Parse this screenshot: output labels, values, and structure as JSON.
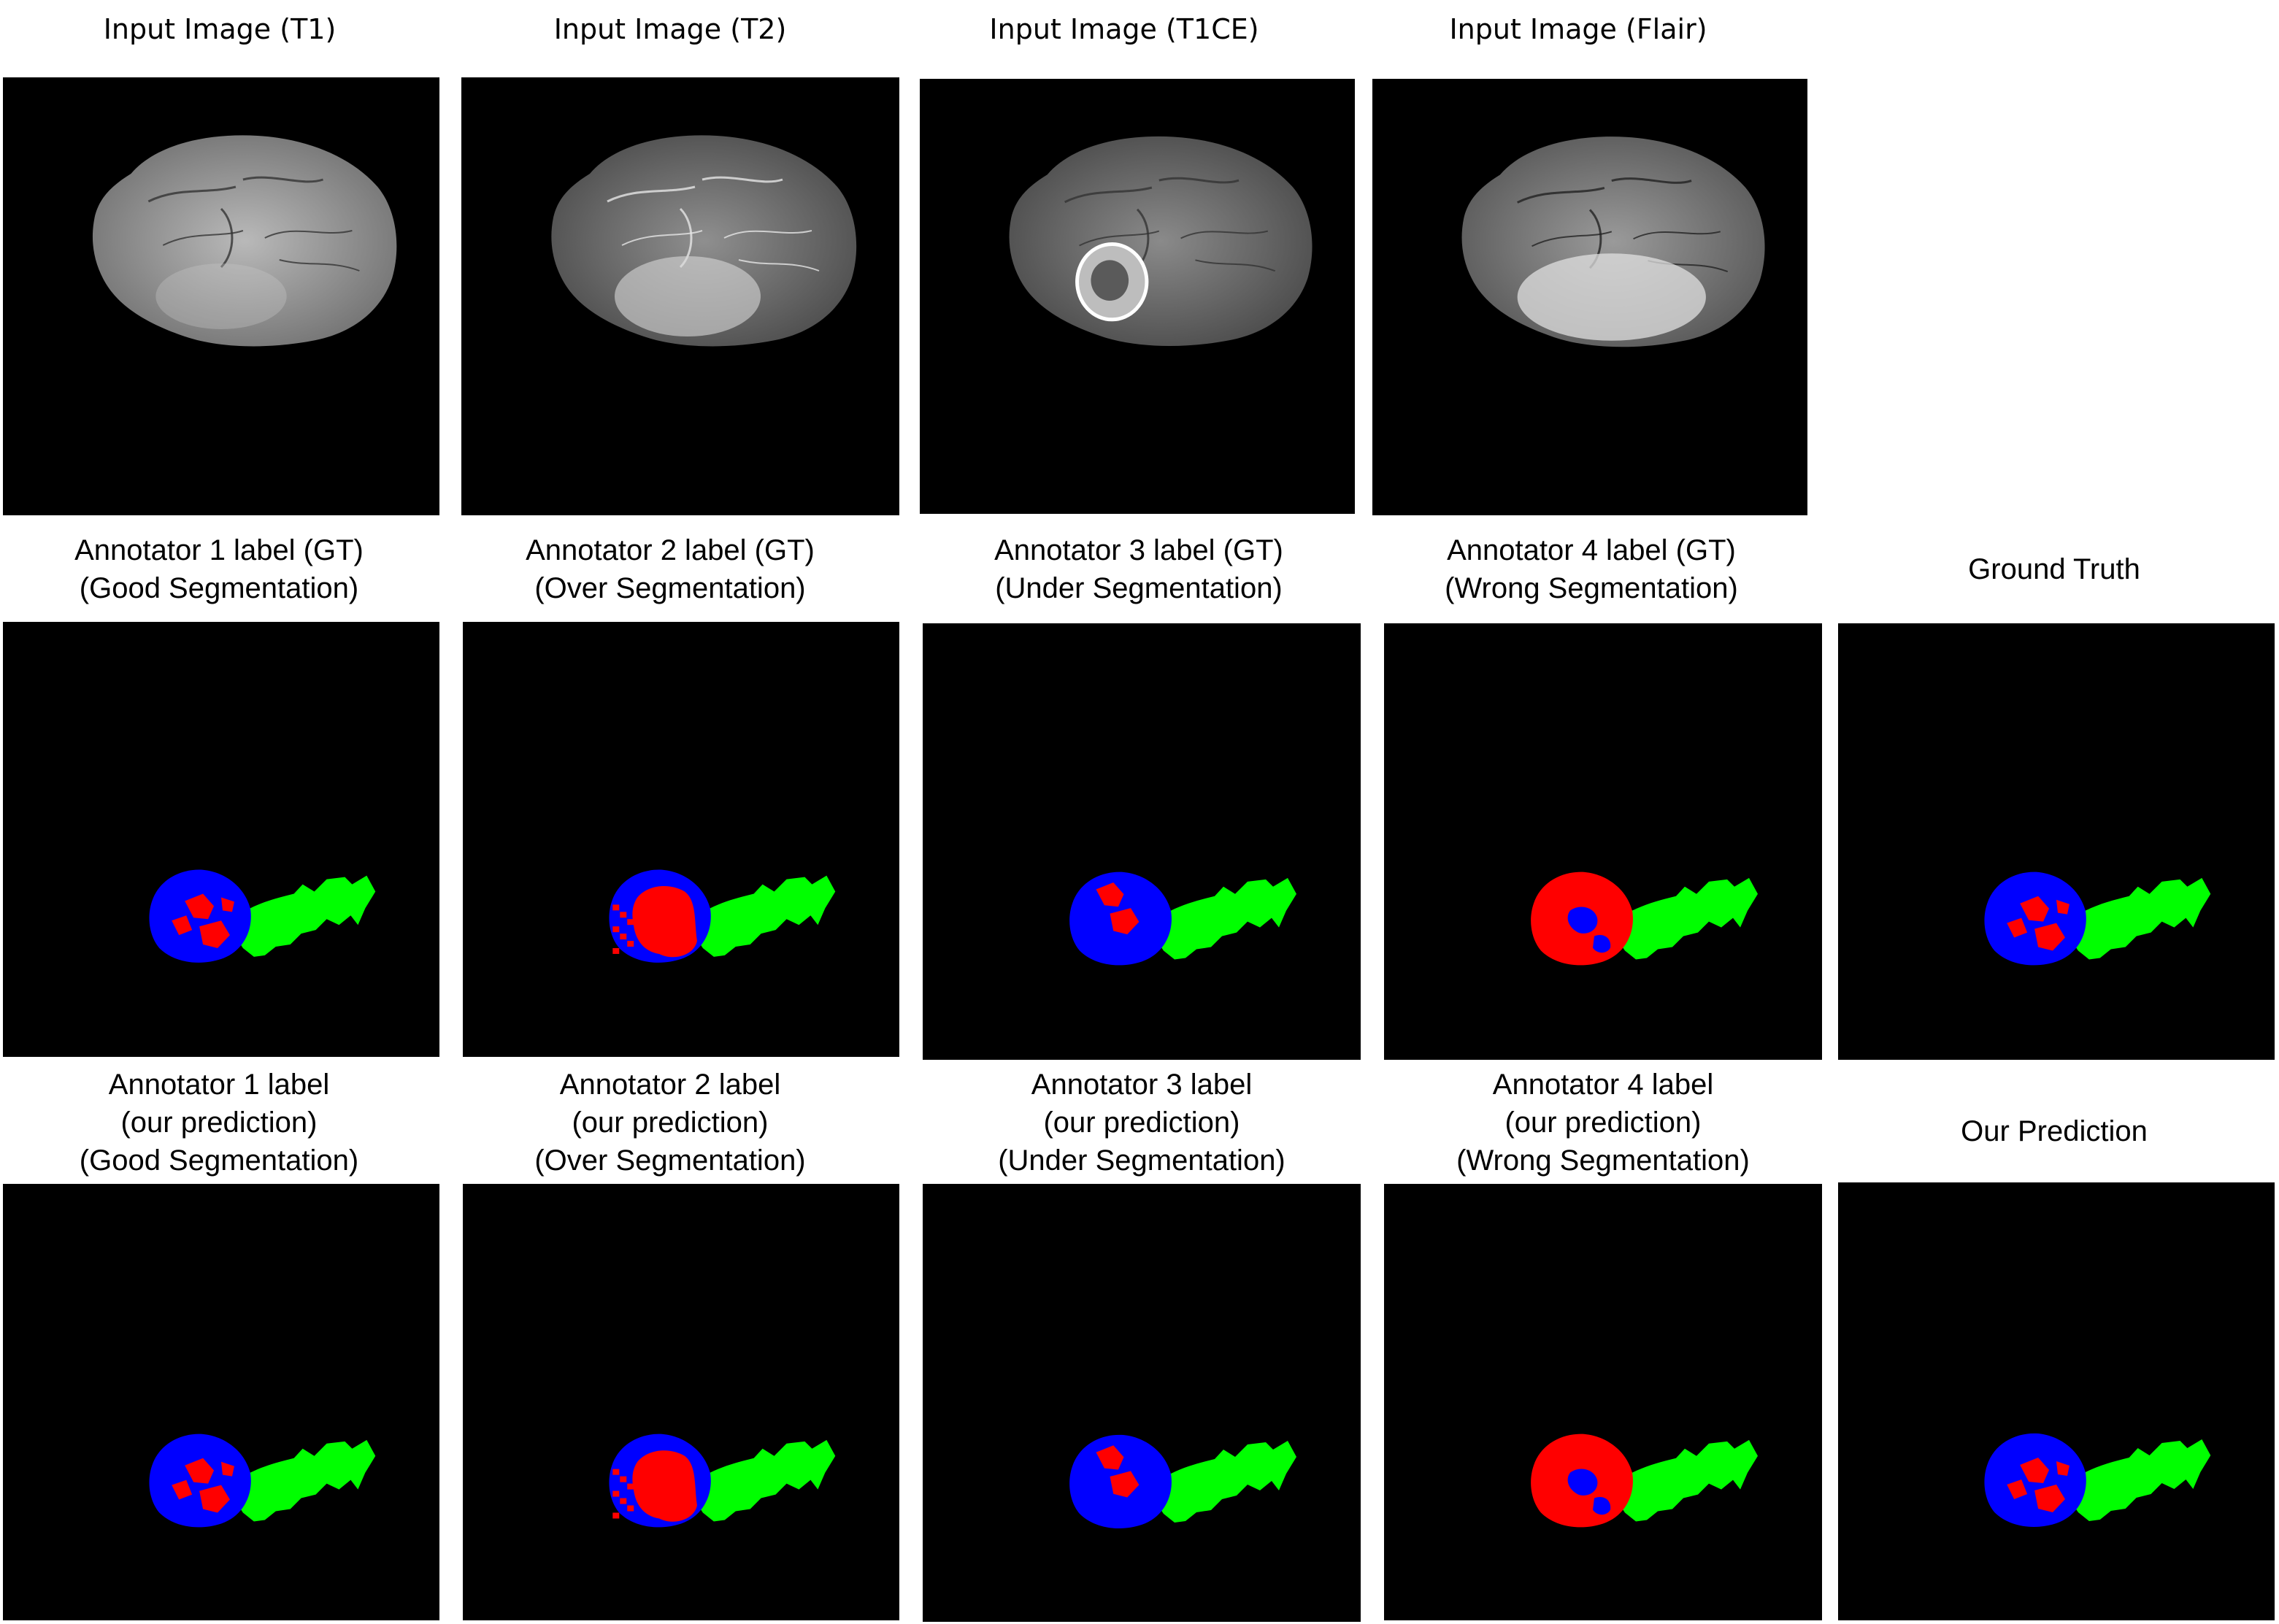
{
  "figure": {
    "rows": [
      {
        "id": "inputs",
        "panels": [
          {
            "caption": [
              "Input Image (T1)"
            ],
            "kind": "mri",
            "modality": "t1"
          },
          {
            "caption": [
              "Input Image (T2)"
            ],
            "kind": "mri",
            "modality": "t2"
          },
          {
            "caption": [
              "Input Image (T1CE)"
            ],
            "kind": "mri",
            "modality": "t1ce"
          },
          {
            "caption": [
              "Input Image (Flair)"
            ],
            "kind": "mri",
            "modality": "flair"
          }
        ]
      },
      {
        "id": "ground-truth",
        "panels": [
          {
            "caption": [
              "Annotator 1 label (GT)",
              "(Good Segmentation)"
            ],
            "kind": "seg",
            "variant": "good"
          },
          {
            "caption": [
              "Annotator 2 label (GT)",
              "(Over Segmentation)"
            ],
            "kind": "seg",
            "variant": "over"
          },
          {
            "caption": [
              "Annotator 3 label (GT)",
              "(Under Segmentation)"
            ],
            "kind": "seg",
            "variant": "under"
          },
          {
            "caption": [
              "Annotator 4 label (GT)",
              "(Wrong Segmentation)"
            ],
            "kind": "seg",
            "variant": "wrong"
          },
          {
            "caption": [
              "Ground Truth"
            ],
            "kind": "seg",
            "variant": "good"
          }
        ]
      },
      {
        "id": "predictions",
        "panels": [
          {
            "caption": [
              "Annotator 1 label",
              "(our prediction)",
              "(Good Segmentation)"
            ],
            "kind": "seg",
            "variant": "good-pred"
          },
          {
            "caption": [
              "Annotator 2 label",
              "(our prediction)",
              "(Over Segmentation)"
            ],
            "kind": "seg",
            "variant": "over-pred"
          },
          {
            "caption": [
              "Annotator 3 label",
              "(our prediction)",
              "(Under Segmentation)"
            ],
            "kind": "seg",
            "variant": "under-pred"
          },
          {
            "caption": [
              "Annotator 4 label",
              "(our prediction)",
              "(Wrong Segmentation)"
            ],
            "kind": "seg",
            "variant": "wrong-pred"
          },
          {
            "caption": [
              "Our Prediction"
            ],
            "kind": "seg",
            "variant": "good-pred"
          }
        ]
      }
    ],
    "label_colors": {
      "edema": "#00ff00",
      "enhancing_tumor": "#0000ff",
      "necrotic_core": "#ff0000",
      "background": "#000000"
    }
  }
}
